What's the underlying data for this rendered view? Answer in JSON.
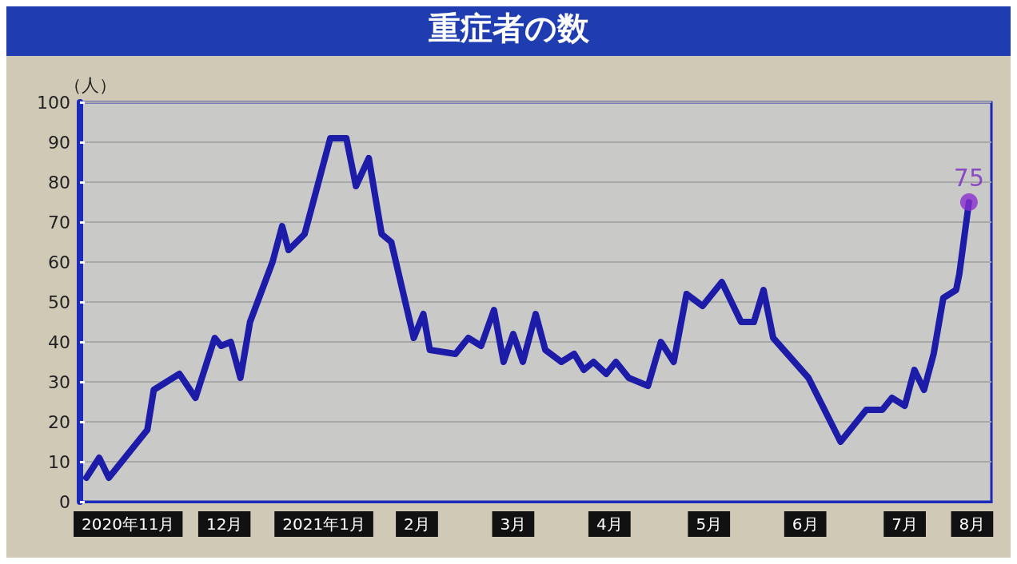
{
  "chart_data": {
    "type": "line",
    "title": "重症者の数",
    "ylabel": "（人）",
    "x": [
      "2020-11-03",
      "2020-11-07",
      "2020-11-10",
      "2020-11-22",
      "2020-11-24",
      "2020-12-02",
      "2020-12-07",
      "2020-12-13",
      "2020-12-15",
      "2020-12-18",
      "2020-12-21",
      "2020-12-24",
      "2020-12-31",
      "2021-01-03",
      "2021-01-05",
      "2021-01-10",
      "2021-01-18",
      "2021-01-23",
      "2021-01-26",
      "2021-01-30",
      "2021-02-03",
      "2021-02-06",
      "2021-02-13",
      "2021-02-16",
      "2021-02-18",
      "2021-02-26",
      "2021-03-02",
      "2021-03-06",
      "2021-03-10",
      "2021-03-13",
      "2021-03-16",
      "2021-03-19",
      "2021-03-23",
      "2021-03-26",
      "2021-03-31",
      "2021-04-04",
      "2021-04-07",
      "2021-04-10",
      "2021-04-14",
      "2021-04-17",
      "2021-04-21",
      "2021-04-27",
      "2021-05-01",
      "2021-05-05",
      "2021-05-09",
      "2021-05-14",
      "2021-05-20",
      "2021-05-26",
      "2021-05-30",
      "2021-06-02",
      "2021-06-05",
      "2021-06-16",
      "2021-06-26",
      "2021-07-04",
      "2021-07-09",
      "2021-07-12",
      "2021-07-16",
      "2021-07-19",
      "2021-07-22",
      "2021-07-25",
      "2021-07-28",
      "2021-08-01",
      "2021-08-02",
      "2021-08-05"
    ],
    "series": [
      {
        "color": "#1c1ca8",
        "values": [
          6,
          11,
          6,
          18,
          28,
          32,
          26,
          41,
          39,
          40,
          31,
          45,
          60,
          69,
          63,
          67,
          91,
          91,
          79,
          86,
          67,
          65,
          41,
          47,
          38,
          37,
          41,
          39,
          48,
          35,
          42,
          35,
          47,
          38,
          35,
          37,
          33,
          35,
          32,
          35,
          31,
          29,
          40,
          35,
          52,
          49,
          55,
          45,
          45,
          53,
          41,
          31,
          15,
          23,
          23,
          26,
          24,
          33,
          28,
          37,
          51,
          53,
          57,
          75
        ]
      }
    ],
    "xlim": [
      "2020-11-01",
      "2021-08-12"
    ],
    "xticks": [
      {
        "value": "2020-11-16",
        "label": "2020年11月"
      },
      {
        "value": "2020-12-16",
        "label": "12月"
      },
      {
        "value": "2021-01-16",
        "label": "2021年1月"
      },
      {
        "value": "2021-02-14",
        "label": "2月"
      },
      {
        "value": "2021-03-16",
        "label": "3月"
      },
      {
        "value": "2021-04-15",
        "label": "4月"
      },
      {
        "value": "2021-05-16",
        "label": "5月"
      },
      {
        "value": "2021-06-15",
        "label": "6月"
      },
      {
        "value": "2021-07-16",
        "label": "7月"
      },
      {
        "value": "2021-08-06",
        "label": "8月"
      }
    ],
    "ylim": [
      0,
      100
    ],
    "yticks": [
      0,
      10,
      20,
      30,
      40,
      50,
      60,
      70,
      80,
      90,
      100
    ],
    "grid": "y",
    "line_style": "solid",
    "annotations": [
      {
        "text": "75",
        "x": "2021-08-05",
        "y": 75
      }
    ]
  }
}
